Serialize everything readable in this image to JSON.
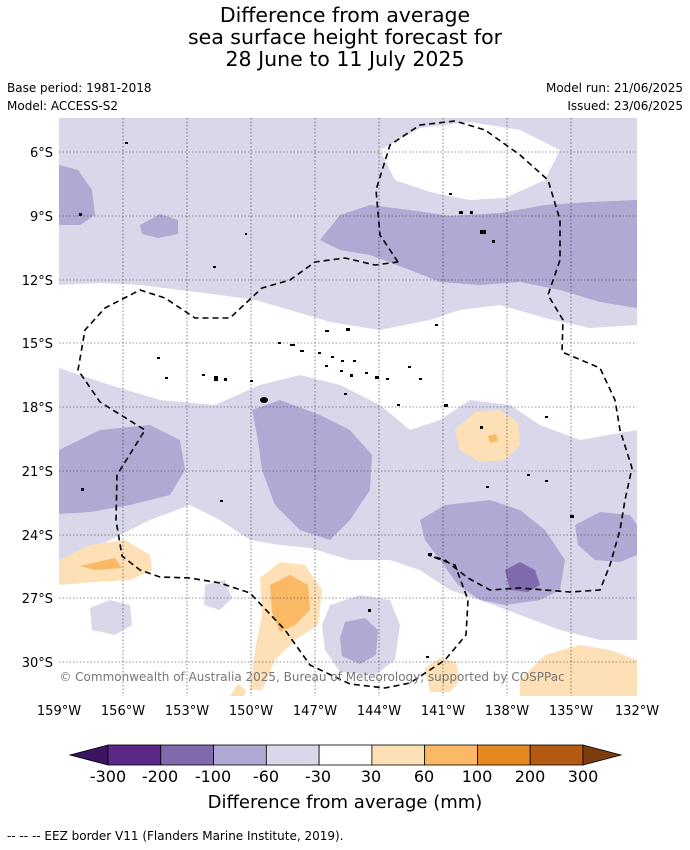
{
  "title": {
    "line1": "Difference from average",
    "line2": "sea surface height forecast for",
    "line3": "28 June to 11 July 2025"
  },
  "meta": {
    "base_period": "Base period: 1981-2018",
    "model": "Model: ACCESS-S2",
    "model_run": "Model run: 21/06/2025",
    "issued": "Issued: 23/06/2025"
  },
  "map": {
    "lat_labels": [
      "6°S",
      "9°S",
      "12°S",
      "15°S",
      "18°S",
      "21°S",
      "24°S",
      "27°S",
      "30°S"
    ],
    "lon_labels": [
      "159°W",
      "156°W",
      "153°W",
      "150°W",
      "147°W",
      "144°W",
      "141°W",
      "138°W",
      "135°W",
      "132°W"
    ],
    "copyright": "© Commonwealth of Australia 2025, Bureau of Meteorology, supported by COSPPac",
    "gridlines": true
  },
  "colorbar": {
    "ticks": [
      "-300",
      "-200",
      "-100",
      "-60",
      "-30",
      "30",
      "60",
      "100",
      "200",
      "300"
    ],
    "colors": [
      "#3c1560",
      "#5b2888",
      "#7f6aae",
      "#b0a9d3",
      "#d8d8ea",
      "#ffffff",
      "#fde0b5",
      "#fbb865",
      "#e58820",
      "#b55a12",
      "#7d3c0e"
    ],
    "label": "Difference from average (mm)"
  },
  "footer": {
    "legend_text": "--  --  -- EEZ border V11 (Flanders Marine Institute, 2019)."
  }
}
